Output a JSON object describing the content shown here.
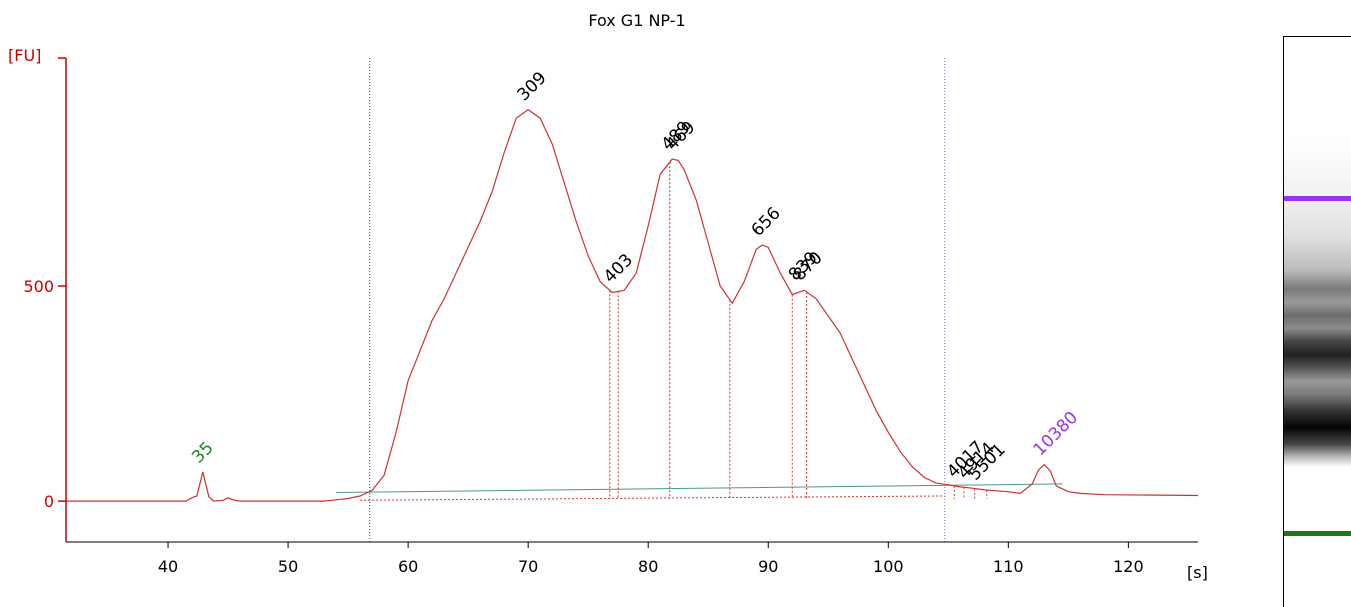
{
  "chart_data": {
    "type": "line",
    "title": "Fox G1 NP-1",
    "xlabel": "[s]",
    "ylabel": "[FU]",
    "xlim": [
      31.5,
      125.8
    ],
    "ylim": [
      -95,
      1030
    ],
    "x_ticks": [
      40,
      50,
      60,
      70,
      80,
      90,
      100,
      110,
      120
    ],
    "y_ticks": [
      0,
      500
    ],
    "colors": {
      "trace": "#cc3333",
      "axis": "#cc0000",
      "baseline": "#4a9a8c",
      "lower_marker": "#1a8a1a",
      "upper_marker": "#9933ee",
      "region_line_left": "#444466",
      "region_line_right": "#6677cc"
    },
    "series": [
      {
        "values_xy": [
          [
            31.5,
            0
          ],
          [
            41.5,
            0
          ],
          [
            42.0,
            8
          ],
          [
            42.4,
            12
          ],
          [
            42.7,
            45
          ],
          [
            42.9,
            68
          ],
          [
            43.1,
            45
          ],
          [
            43.4,
            10
          ],
          [
            43.8,
            0
          ],
          [
            44.6,
            2
          ],
          [
            45.0,
            8
          ],
          [
            45.4,
            3
          ],
          [
            46.0,
            0
          ],
          [
            53.0,
            0
          ],
          [
            54.0,
            3
          ],
          [
            55.0,
            6
          ],
          [
            56.0,
            12
          ],
          [
            57.0,
            25
          ],
          [
            58.0,
            60
          ],
          [
            59.0,
            160
          ],
          [
            60.0,
            280
          ],
          [
            61.0,
            350
          ],
          [
            62.0,
            420
          ],
          [
            63.0,
            470
          ],
          [
            64.0,
            530
          ],
          [
            65.0,
            590
          ],
          [
            66.0,
            650
          ],
          [
            67.0,
            720
          ],
          [
            68.0,
            810
          ],
          [
            69.0,
            890
          ],
          [
            70.0,
            910
          ],
          [
            71.0,
            890
          ],
          [
            72.0,
            830
          ],
          [
            73.0,
            740
          ],
          [
            74.0,
            650
          ],
          [
            75.0,
            570
          ],
          [
            76.0,
            510
          ],
          [
            77.0,
            485
          ],
          [
            78.0,
            490
          ],
          [
            79.0,
            530
          ],
          [
            80.0,
            640
          ],
          [
            81.0,
            760
          ],
          [
            82.0,
            795
          ],
          [
            82.5,
            792
          ],
          [
            83.0,
            770
          ],
          [
            84.0,
            700
          ],
          [
            85.0,
            600
          ],
          [
            86.0,
            500
          ],
          [
            87.0,
            460
          ],
          [
            88.0,
            510
          ],
          [
            89.0,
            585
          ],
          [
            89.5,
            595
          ],
          [
            90.0,
            590
          ],
          [
            91.0,
            530
          ],
          [
            92.0,
            480
          ],
          [
            93.0,
            490
          ],
          [
            94.0,
            470
          ],
          [
            95.0,
            430
          ],
          [
            96.0,
            390
          ],
          [
            97.0,
            330
          ],
          [
            98.0,
            270
          ],
          [
            99.0,
            210
          ],
          [
            100.0,
            160
          ],
          [
            101.0,
            115
          ],
          [
            102.0,
            80
          ],
          [
            103.0,
            55
          ],
          [
            104.0,
            42
          ],
          [
            105.0,
            38
          ],
          [
            106.0,
            33
          ],
          [
            107.0,
            30
          ],
          [
            108.0,
            26
          ],
          [
            109.0,
            24
          ],
          [
            110.0,
            22
          ],
          [
            111.0,
            18
          ],
          [
            112.0,
            40
          ],
          [
            112.5,
            72
          ],
          [
            113.0,
            85
          ],
          [
            113.5,
            70
          ],
          [
            114.0,
            35
          ],
          [
            115.0,
            22
          ],
          [
            116.0,
            18
          ],
          [
            118.0,
            15
          ],
          [
            125.8,
            13
          ]
        ]
      }
    ],
    "peaks": [
      {
        "label": "35",
        "x": 42.9,
        "y": 68,
        "color": "#1a8a1a"
      },
      {
        "label": "309",
        "x": 70.0,
        "y": 910,
        "color": "#000000"
      },
      {
        "label": "403",
        "x": 77.2,
        "y": 487,
        "color": "#000000"
      },
      {
        "label": "489",
        "x": 82.0,
        "y": 795,
        "color": "#000000"
      },
      {
        "label": "469",
        "x": 82.4,
        "y": 795,
        "color": "#000000"
      },
      {
        "label": "656",
        "x": 89.5,
        "y": 595,
        "color": "#000000"
      },
      {
        "label": "839",
        "x": 92.6,
        "y": 492,
        "color": "#000000"
      },
      {
        "label": "870",
        "x": 93.0,
        "y": 492,
        "color": "#000000"
      },
      {
        "label": "4017",
        "x": 105.8,
        "y": 34,
        "color": "#000000"
      },
      {
        "label": "4914",
        "x": 106.7,
        "y": 31,
        "color": "#000000"
      },
      {
        "label": "5501",
        "x": 107.6,
        "y": 28,
        "color": "#000000"
      },
      {
        "label": "10380",
        "x": 113.0,
        "y": 85,
        "color": "#9933ee"
      }
    ],
    "region_lines_x": [
      56.8,
      104.7
    ],
    "segment_drops_x": [
      76.8,
      77.5,
      81.8,
      86.8,
      92.0,
      93.2,
      105.5,
      106.3,
      107.2,
      108.2
    ],
    "baseline": {
      "x0": 54,
      "x1": 114.5,
      "y0": 20,
      "y1": 40
    }
  }
}
